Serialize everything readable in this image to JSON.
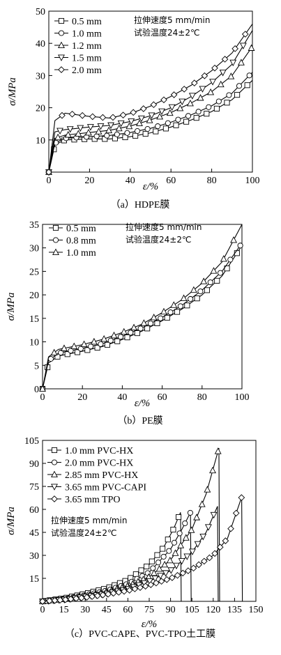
{
  "chart_data": [
    {
      "type": "line",
      "caption": "（a）HDPE膜",
      "xlabel": "ε/%",
      "ylabel": "σ/MPa",
      "xlim": [
        0,
        100
      ],
      "ylim": [
        0,
        50
      ],
      "xticks": [
        0,
        20,
        40,
        60,
        80,
        100
      ],
      "yticks": [
        10,
        20,
        30,
        40,
        50
      ],
      "notes": [
        "拉伸速度5 mm/min",
        "试验温度24±2℃"
      ],
      "legend_position": "top-left",
      "series": [
        {
          "name": "0.5 mm",
          "marker": "square",
          "x": [
            0,
            3,
            8,
            20,
            30,
            40,
            50,
            60,
            70,
            80,
            90,
            100
          ],
          "y": [
            0,
            8.5,
            10,
            10.3,
            10.3,
            11.0,
            12.2,
            14.0,
            16.2,
            18.8,
            22.5,
            28.5
          ]
        },
        {
          "name": "1.0 mm",
          "marker": "circle",
          "x": [
            0,
            3,
            8,
            20,
            30,
            40,
            50,
            60,
            70,
            80,
            90,
            100
          ],
          "y": [
            0,
            9,
            10.5,
            11.0,
            11.4,
            12.3,
            13.6,
            15.5,
            17.8,
            20.6,
            24.5,
            31
          ]
        },
        {
          "name": "1.2 mm",
          "marker": "triangle-up",
          "x": [
            0,
            3,
            8,
            20,
            30,
            40,
            50,
            60,
            70,
            80,
            90,
            100
          ],
          "y": [
            0,
            10.5,
            11.5,
            12.3,
            13.0,
            14.3,
            16.2,
            18.5,
            21.5,
            25.0,
            30.0,
            39
          ]
        },
        {
          "name": "1.5 mm",
          "marker": "triangle-down",
          "x": [
            0,
            3,
            8,
            20,
            30,
            40,
            50,
            60,
            70,
            80,
            90,
            100
          ],
          "y": [
            0,
            12.5,
            13.2,
            14.0,
            14.5,
            15.7,
            17.5,
            20.0,
            23.5,
            27.8,
            33.5,
            44
          ]
        },
        {
          "name": "2.0 mm",
          "marker": "diamond",
          "x": [
            0,
            3,
            8,
            20,
            30,
            40,
            50,
            60,
            70,
            80,
            90,
            100
          ],
          "y": [
            0,
            16,
            18.3,
            17.3,
            16.8,
            18.2,
            20.5,
            23.5,
            27.0,
            31.5,
            37.0,
            46
          ]
        }
      ]
    },
    {
      "type": "line",
      "caption": "（b）PE膜",
      "xlabel": "ε/%",
      "ylabel": "σ/MPa",
      "xlim": [
        0,
        100
      ],
      "ylim": [
        0,
        35
      ],
      "xticks": [
        0,
        20,
        40,
        60,
        80,
        100
      ],
      "yticks": [
        0,
        5,
        10,
        15,
        20,
        25,
        30,
        35
      ],
      "notes": [
        "拉伸速度5 mm/min",
        "试验温度24±2℃"
      ],
      "legend_position": "top-left",
      "series": [
        {
          "name": "0.5 mm",
          "marker": "square",
          "x": [
            0,
            3,
            8,
            20,
            30,
            40,
            50,
            60,
            70,
            80,
            90,
            100
          ],
          "y": [
            0,
            5.5,
            7.0,
            8.0,
            9.0,
            10.5,
            12.3,
            14.5,
            17.0,
            20.0,
            24.0,
            30.5
          ]
        },
        {
          "name": "0.8 mm",
          "marker": "circle",
          "x": [
            0,
            3,
            8,
            20,
            30,
            40,
            50,
            60,
            70,
            80,
            90,
            100
          ],
          "y": [
            0,
            6.0,
            7.6,
            8.6,
            9.6,
            11.2,
            13.0,
            15.2,
            17.8,
            21.0,
            25.0,
            31.0
          ]
        },
        {
          "name": "1.0 mm",
          "marker": "triangle-up",
          "x": [
            0,
            3,
            8,
            20,
            30,
            40,
            50,
            60,
            70,
            80,
            90,
            100
          ],
          "y": [
            0,
            6.8,
            8.4,
            9.4,
            10.5,
            12.0,
            13.8,
            16.2,
            19.0,
            22.5,
            27.0,
            35.0
          ]
        }
      ]
    },
    {
      "type": "line",
      "caption": "（c）PVC-CAPE、PVC-TPO土工膜",
      "xlabel": "ε/%",
      "ylabel": "σ/MPa",
      "xlim": [
        0,
        150
      ],
      "ylim": [
        0,
        105
      ],
      "xticks": [
        0,
        15,
        30,
        45,
        60,
        75,
        90,
        105,
        120,
        135,
        150
      ],
      "yticks": [
        15,
        30,
        45,
        60,
        75,
        90,
        105
      ],
      "notes": [
        "拉伸速度5 mm/min",
        "试验温度24±2℃"
      ],
      "legend_position": "top-left",
      "series": [
        {
          "name": "1.0 mm PVC-HX",
          "marker": "square",
          "x": [
            0,
            15,
            30,
            45,
            60,
            75,
            85,
            92,
            97,
            97.5
          ],
          "y": [
            0,
            2,
            5,
            8.5,
            14,
            24,
            35,
            47,
            58,
            0
          ]
        },
        {
          "name": "2.0 mm PVC-HX",
          "marker": "circle",
          "x": [
            0,
            15,
            30,
            45,
            60,
            75,
            90,
            98,
            104,
            104.5
          ],
          "y": [
            0,
            1.5,
            4,
            7,
            11.5,
            19,
            34,
            47,
            58,
            0
          ]
        },
        {
          "name": "2.85 mm PVC-HX",
          "marker": "triangle-up",
          "x": [
            0,
            15,
            30,
            45,
            60,
            75,
            90,
            105,
            115,
            124,
            124.5
          ],
          "y": [
            0,
            1.5,
            3.5,
            6,
            10,
            16,
            27,
            47,
            70,
            100,
            0
          ]
        },
        {
          "name": "3.65 mm PVC-CAPI",
          "marker": "triangle-down",
          "x": [
            0,
            15,
            30,
            45,
            60,
            75,
            90,
            105,
            115,
            123,
            123.5
          ],
          "y": [
            0,
            1,
            3,
            5,
            8,
            13,
            20,
            32,
            45,
            62,
            0
          ]
        },
        {
          "name": "3.65 mm TPO",
          "marker": "diamond",
          "x": [
            0,
            15,
            30,
            45,
            60,
            75,
            90,
            105,
            120,
            130,
            140,
            140.5
          ],
          "y": [
            0,
            1,
            2.5,
            4.5,
            7,
            10.5,
            15,
            21,
            30,
            41,
            68,
            0
          ]
        }
      ]
    }
  ]
}
